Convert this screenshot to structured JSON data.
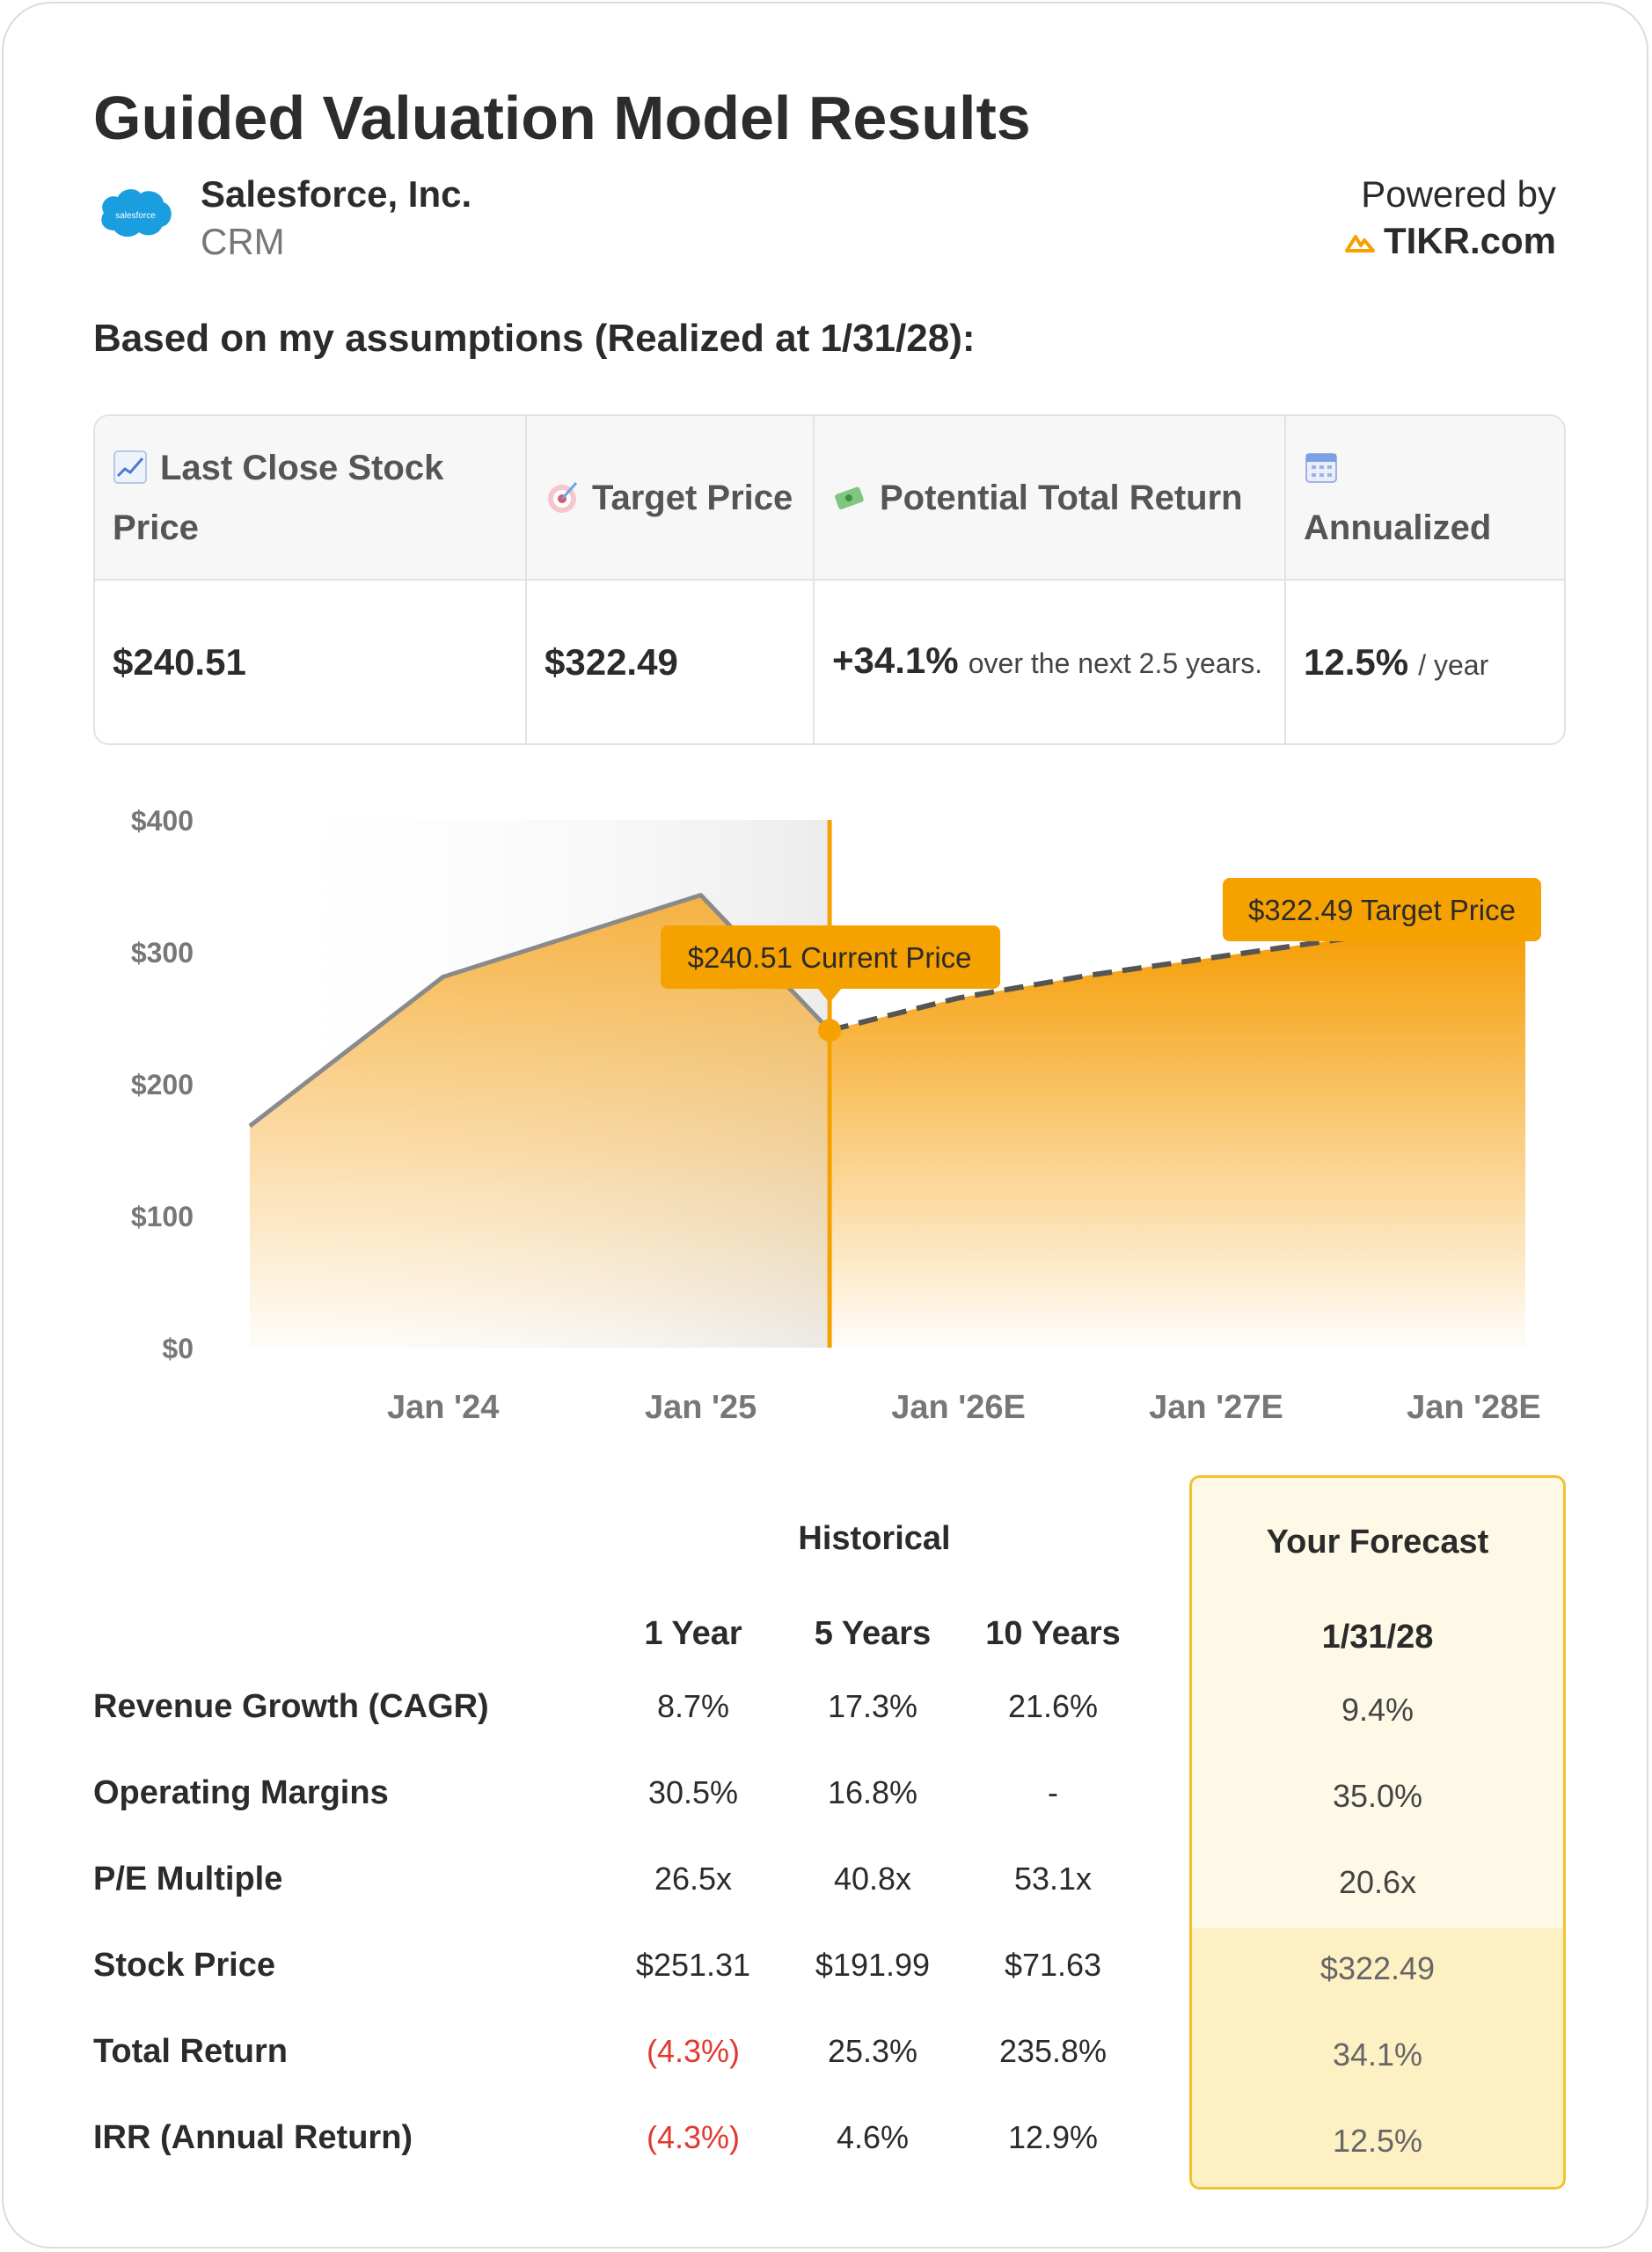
{
  "header": {
    "title": "Guided Valuation Model Results",
    "company_name": "Salesforce, Inc.",
    "ticker": "CRM",
    "logo_text": "salesforce",
    "powered_by": "Powered by",
    "brand": "TIKR.com",
    "subheading": "Based on my assumptions (Realized at 1/31/28):"
  },
  "summary": {
    "headers": [
      {
        "icon": "chart-up-icon",
        "label": "Last Close Stock Price"
      },
      {
        "icon": "target-icon",
        "label": "Target Price"
      },
      {
        "icon": "money-icon",
        "label": "Potential Total Return"
      },
      {
        "icon": "calendar-icon",
        "label": "Annualized"
      }
    ],
    "last_close": "$240.51",
    "target": "$322.49",
    "total_return": "+34.1%",
    "total_return_note": "over the next 2.5 years.",
    "annualized": "12.5%",
    "annualized_unit": "/ year"
  },
  "chart_data": {
    "type": "area",
    "x_ticks": [
      "Jan '24",
      "Jan '25",
      "Jan '26E",
      "Jan '27E",
      "Jan '28E"
    ],
    "y_ticks": [
      "$0",
      "$100",
      "$200",
      "$300",
      "$400"
    ],
    "ylim": [
      0,
      400
    ],
    "historical": {
      "name": "Historical",
      "x": [
        2023.25,
        2024.0,
        2025.0,
        2025.5
      ],
      "y": [
        168,
        281,
        343,
        240.51
      ]
    },
    "forecast": {
      "name": "Forecast",
      "x": [
        2025.5,
        2026.0,
        2026.5,
        2027.0,
        2027.5,
        2028.2
      ],
      "y": [
        240.51,
        265,
        282,
        296,
        310,
        322.49
      ]
    },
    "current_marker": {
      "x": 2025.5,
      "y": 240.51
    },
    "annotations": {
      "current": "$240.51 Current Price",
      "target": "$322.49 Target Price"
    },
    "colors": {
      "accent": "#f5a100",
      "line": "#8a8a8a",
      "forecast_line": "#555555"
    }
  },
  "metrics": {
    "group_historical": "Historical",
    "group_forecast": "Your Forecast",
    "columns": [
      "1 Year",
      "5 Years",
      "10 Years"
    ],
    "forecast_column": "1/31/28",
    "rows": [
      {
        "label": "Revenue Growth (CAGR)",
        "values": [
          "8.7%",
          "17.3%",
          "21.6%"
        ],
        "forecast": "9.4%"
      },
      {
        "label": "Operating Margins",
        "values": [
          "30.5%",
          "16.8%",
          "-"
        ],
        "forecast": "35.0%"
      },
      {
        "label": "P/E Multiple",
        "values": [
          "26.5x",
          "40.8x",
          "53.1x"
        ],
        "forecast": "20.6x"
      },
      {
        "label": "Stock Price",
        "values": [
          "$251.31",
          "$191.99",
          "$71.63"
        ],
        "forecast": "$322.49"
      },
      {
        "label": "Total Return",
        "values": [
          "(4.3%)",
          "25.3%",
          "235.8%"
        ],
        "forecast": "34.1%"
      },
      {
        "label": "IRR (Annual Return)",
        "values": [
          "(4.3%)",
          "4.6%",
          "12.9%"
        ],
        "forecast": "12.5%"
      }
    ],
    "negative_color": "#e03a2f"
  }
}
